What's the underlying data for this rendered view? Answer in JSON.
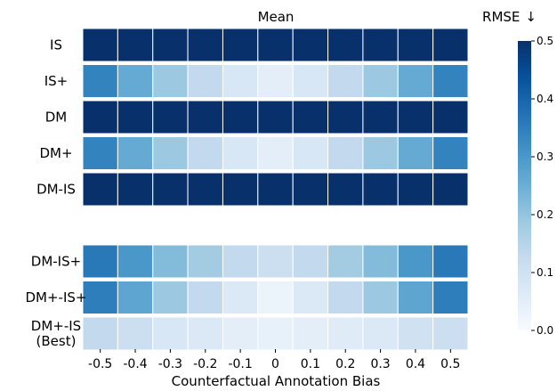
{
  "chart_data": {
    "type": "heatmap",
    "title": "Mean",
    "xlabel": "Counterfactual Annotation Bias",
    "x": [
      "-0.5",
      "-0.4",
      "-0.3",
      "-0.2",
      "-0.1",
      "0",
      "0.1",
      "0.2",
      "0.3",
      "0.4",
      "0.5"
    ],
    "colorbar": {
      "label": "RMSE",
      "arrow": "↓",
      "range": [
        0.0,
        0.5
      ],
      "ticks": [
        "0.0",
        "0.1",
        "0.2",
        "0.3",
        "0.4",
        "0.5"
      ],
      "colormap": "Blues",
      "colors": [
        "#f7fbff",
        "#deebf7",
        "#c6dbef",
        "#9ecae1",
        "#6baed6",
        "#4292c6",
        "#2171b5",
        "#08519c",
        "#08306b"
      ]
    },
    "groups": [
      {
        "rows": [
          {
            "label": "IS",
            "values": [
              0.5,
              0.5,
              0.5,
              0.5,
              0.5,
              0.5,
              0.5,
              0.5,
              0.5,
              0.5,
              0.5
            ]
          },
          {
            "label": "IS+",
            "values": [
              0.34,
              0.26,
              0.19,
              0.13,
              0.08,
              0.05,
              0.08,
              0.13,
              0.19,
              0.26,
              0.34
            ]
          },
          {
            "label": "DM",
            "values": [
              0.5,
              0.5,
              0.5,
              0.5,
              0.5,
              0.5,
              0.5,
              0.5,
              0.5,
              0.5,
              0.5
            ]
          },
          {
            "label": "DM+",
            "values": [
              0.34,
              0.26,
              0.19,
              0.13,
              0.08,
              0.05,
              0.08,
              0.13,
              0.19,
              0.26,
              0.34
            ]
          },
          {
            "label": "DM-IS",
            "values": [
              0.5,
              0.5,
              0.5,
              0.5,
              0.5,
              0.5,
              0.5,
              0.5,
              0.5,
              0.5,
              0.5
            ]
          }
        ]
      },
      {
        "rows": [
          {
            "label": "DM-IS+",
            "values": [
              0.36,
              0.3,
              0.22,
              0.18,
              0.13,
              0.11,
              0.13,
              0.18,
              0.22,
              0.3,
              0.36
            ]
          },
          {
            "label": "DM+-IS+",
            "values": [
              0.35,
              0.27,
              0.19,
              0.13,
              0.07,
              0.03,
              0.07,
              0.13,
              0.19,
              0.27,
              0.35
            ]
          },
          {
            "label": "DM+-IS (Best)",
            "label_lines": [
              "DM+-IS",
              "(Best)"
            ],
            "values": [
              0.13,
              0.11,
              0.08,
              0.07,
              0.05,
              0.04,
              0.05,
              0.06,
              0.07,
              0.1,
              0.11
            ]
          }
        ]
      }
    ]
  }
}
